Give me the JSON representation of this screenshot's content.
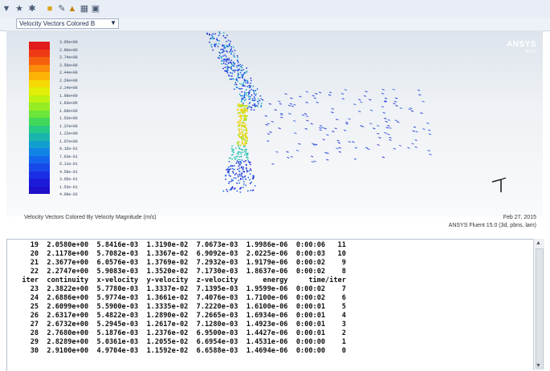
{
  "toolbar": {
    "icons": [
      "arrow-dropdown-icon",
      "tool-dropdown-icon",
      "tool-dropdown-icon",
      "folder-icon",
      "pen-icon",
      "figure-icon",
      "grid-icon",
      "save-icon"
    ]
  },
  "viewport": {
    "selector_label": "Velocity Vectors Colored B"
  },
  "graphics": {
    "brand": "ANSYS",
    "brand_sub": "R15.0",
    "caption": "Velocity Vectors Colored By Velocity Magnitude (m/s)",
    "date": "Feb 27, 2015",
    "version": "ANSYS Fluent 15.0 (3d, pbns, lam)",
    "colors": [
      "#e21b1b",
      "#ee3a14",
      "#f5600e",
      "#f98c09",
      "#fbb205",
      "#f7d903",
      "#e2ee07",
      "#bff112",
      "#96ed23",
      "#6ce53a",
      "#42d85a",
      "#27c986",
      "#1ab6ad",
      "#129fd0",
      "#1183e5",
      "#1366ec",
      "#1749ea",
      "#1a2fe3",
      "#1c1bd9",
      "#1e10c9"
    ],
    "scale_labels": [
      "3.05e+00",
      "2.90e+00",
      "2.74e+00",
      "2.59e+00",
      "2.44e+00",
      "2.29e+00",
      "2.14e+00",
      "1.98e+00",
      "1.83e+00",
      "1.68e+00",
      "1.53e+00",
      "1.37e+00",
      "1.22e+00",
      "1.07e+00",
      "9.16e-01",
      "7.63e-01",
      "6.11e-01",
      "4.58e-01",
      "3.05e-01",
      "1.53e-01",
      "4.09e-03"
    ]
  },
  "console": {
    "lines": [
      "    19  2.0580e+00  5.8416e-03  1.3190e-02  7.0673e-03  1.9986e-06  0:00:06   11",
      "    20  2.1178e+00  5.7082e-03  1.3367e-02  6.9092e-03  2.0225e-06  0:00:03   10",
      "    21  2.3677e+00  6.0576e-03  1.3769e-02  7.2932e-03  1.9179e-06  0:00:02    9",
      "    22  2.2747e+00  5.9083e-03  1.3520e-02  7.1730e-03  1.8637e-06  0:00:02    8",
      "  iter  continuity  x-velocity  y-velocity  z-velocity      energy     time/iter",
      "    23  2.3822e+00  5.7780e-03  1.3337e-02  7.1395e-03  1.9599e-06  0:00:02    7",
      "    24  2.6886e+00  5.9774e-03  1.3661e-02  7.4076e-03  1.7100e-06  0:00:02    6",
      "    25  2.6099e+00  5.5900e-03  1.3335e-02  7.2220e-03  1.6100e-06  0:00:01    5",
      "    26  2.6317e+00  5.4822e-03  1.2890e-02  7.2665e-03  1.6934e-06  0:00:01    4",
      "    27  2.6732e+00  5.2945e-03  1.2617e-02  7.1280e-03  1.4923e-06  0:00:01    3",
      "    28  2.7680e+00  5.1876e-03  1.2376e-02  6.9500e-03  1.4427e-06  0:00:01    2",
      "    29  2.8289e+00  5.0361e-03  1.2055e-02  6.6954e-03  1.4531e-06  0:00:00    1",
      "    30  2.9100e+00  4.9704e-03  1.1592e-02  6.6588e-03  1.4694e-06  0:00:00    0"
    ]
  }
}
